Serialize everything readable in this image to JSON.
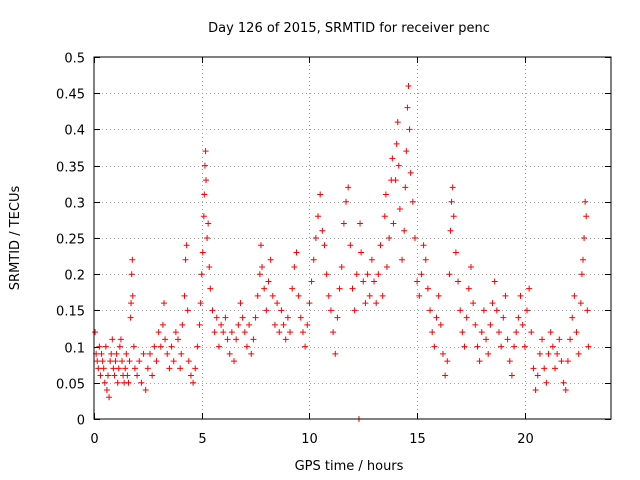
{
  "chart_data": {
    "type": "scatter",
    "title": "Day 126 of 2015, SRMTID for receiver penc",
    "xlabel": "GPS time / hours",
    "ylabel": "SRMTID / TECUs",
    "xlim": [
      0,
      24
    ],
    "ylim": [
      0,
      0.5
    ],
    "x_ticks": [
      0,
      5,
      10,
      15,
      20
    ],
    "x_tick_labels": [
      "0",
      "5",
      "10",
      "15",
      "20"
    ],
    "y_ticks": [
      0,
      0.05,
      0.1,
      0.15,
      0.2,
      0.25,
      0.3,
      0.35,
      0.4,
      0.45,
      0.5
    ],
    "y_tick_labels": [
      "0",
      "0.05",
      "0.1",
      "0.15",
      "0.2",
      "0.25",
      "0.3",
      "0.35",
      "0.4",
      "0.45",
      "0.5"
    ],
    "grid": true,
    "marker": "+",
    "marker_color": "#ff0000",
    "series": [
      {
        "name": "SRMTID",
        "points": [
          [
            0.05,
            0.12
          ],
          [
            0.1,
            0.09
          ],
          [
            0.15,
            0.08
          ],
          [
            0.2,
            0.07
          ],
          [
            0.25,
            0.1
          ],
          [
            0.3,
            0.06
          ],
          [
            0.35,
            0.09
          ],
          [
            0.4,
            0.08
          ],
          [
            0.45,
            0.07
          ],
          [
            0.5,
            0.05
          ],
          [
            0.55,
            0.1
          ],
          [
            0.6,
            0.04
          ],
          [
            0.65,
            0.06
          ],
          [
            0.7,
            0.03
          ],
          [
            0.75,
            0.08
          ],
          [
            0.8,
            0.09
          ],
          [
            0.85,
            0.11
          ],
          [
            0.9,
            0.07
          ],
          [
            0.95,
            0.06
          ],
          [
            1.0,
            0.08
          ],
          [
            1.05,
            0.09
          ],
          [
            1.1,
            0.05
          ],
          [
            1.15,
            0.07
          ],
          [
            1.2,
            0.1
          ],
          [
            1.25,
            0.11
          ],
          [
            1.3,
            0.08
          ],
          [
            1.35,
            0.06
          ],
          [
            1.4,
            0.05
          ],
          [
            1.45,
            0.07
          ],
          [
            1.5,
            0.09
          ],
          [
            1.55,
            0.06
          ],
          [
            1.6,
            0.05
          ],
          [
            1.65,
            0.08
          ],
          [
            1.7,
            0.14
          ],
          [
            1.72,
            0.16
          ],
          [
            1.75,
            0.2
          ],
          [
            1.78,
            0.22
          ],
          [
            1.8,
            0.17
          ],
          [
            1.85,
            0.1
          ],
          [
            1.9,
            0.07
          ],
          [
            2.0,
            0.06
          ],
          [
            2.1,
            0.08
          ],
          [
            2.2,
            0.05
          ],
          [
            2.3,
            0.09
          ],
          [
            2.4,
            0.04
          ],
          [
            2.5,
            0.07
          ],
          [
            2.6,
            0.09
          ],
          [
            2.7,
            0.06
          ],
          [
            2.8,
            0.1
          ],
          [
            2.9,
            0.08
          ],
          [
            3.0,
            0.12
          ],
          [
            3.1,
            0.1
          ],
          [
            3.2,
            0.13
          ],
          [
            3.25,
            0.16
          ],
          [
            3.3,
            0.11
          ],
          [
            3.4,
            0.09
          ],
          [
            3.5,
            0.07
          ],
          [
            3.6,
            0.1
          ],
          [
            3.7,
            0.08
          ],
          [
            3.8,
            0.12
          ],
          [
            3.9,
            0.11
          ],
          [
            4.0,
            0.07
          ],
          [
            4.05,
            0.09
          ],
          [
            4.1,
            0.13
          ],
          [
            4.2,
            0.17
          ],
          [
            4.25,
            0.22
          ],
          [
            4.3,
            0.24
          ],
          [
            4.35,
            0.15
          ],
          [
            4.4,
            0.08
          ],
          [
            4.5,
            0.06
          ],
          [
            4.6,
            0.05
          ],
          [
            4.7,
            0.07
          ],
          [
            4.8,
            0.1
          ],
          [
            4.9,
            0.13
          ],
          [
            4.95,
            0.16
          ],
          [
            5.0,
            0.2
          ],
          [
            5.05,
            0.23
          ],
          [
            5.1,
            0.28
          ],
          [
            5.12,
            0.31
          ],
          [
            5.15,
            0.35
          ],
          [
            5.18,
            0.37
          ],
          [
            5.2,
            0.33
          ],
          [
            5.25,
            0.25
          ],
          [
            5.3,
            0.27
          ],
          [
            5.35,
            0.21
          ],
          [
            5.4,
            0.18
          ],
          [
            5.5,
            0.15
          ],
          [
            5.6,
            0.12
          ],
          [
            5.7,
            0.14
          ],
          [
            5.8,
            0.1
          ],
          [
            5.9,
            0.13
          ],
          [
            6.0,
            0.12
          ],
          [
            6.1,
            0.14
          ],
          [
            6.2,
            0.11
          ],
          [
            6.3,
            0.09
          ],
          [
            6.4,
            0.12
          ],
          [
            6.5,
            0.08
          ],
          [
            6.6,
            0.11
          ],
          [
            6.7,
            0.13
          ],
          [
            6.8,
            0.16
          ],
          [
            6.9,
            0.14
          ],
          [
            7.0,
            0.12
          ],
          [
            7.1,
            0.1
          ],
          [
            7.2,
            0.13
          ],
          [
            7.3,
            0.09
          ],
          [
            7.4,
            0.11
          ],
          [
            7.5,
            0.14
          ],
          [
            7.6,
            0.17
          ],
          [
            7.7,
            0.2
          ],
          [
            7.75,
            0.24
          ],
          [
            7.8,
            0.21
          ],
          [
            7.9,
            0.18
          ],
          [
            8.0,
            0.15
          ],
          [
            8.1,
            0.19
          ],
          [
            8.2,
            0.22
          ],
          [
            8.3,
            0.17
          ],
          [
            8.4,
            0.13
          ],
          [
            8.5,
            0.16
          ],
          [
            8.6,
            0.12
          ],
          [
            8.7,
            0.15
          ],
          [
            8.8,
            0.13
          ],
          [
            8.9,
            0.11
          ],
          [
            9.0,
            0.14
          ],
          [
            9.1,
            0.12
          ],
          [
            9.2,
            0.18
          ],
          [
            9.3,
            0.21
          ],
          [
            9.4,
            0.23
          ],
          [
            9.5,
            0.17
          ],
          [
            9.6,
            0.14
          ],
          [
            9.7,
            0.12
          ],
          [
            9.8,
            0.1
          ],
          [
            9.9,
            0.13
          ],
          [
            10.0,
            0.16
          ],
          [
            10.1,
            0.19
          ],
          [
            10.2,
            0.22
          ],
          [
            10.3,
            0.25
          ],
          [
            10.4,
            0.28
          ],
          [
            10.5,
            0.31
          ],
          [
            10.6,
            0.26
          ],
          [
            10.7,
            0.24
          ],
          [
            10.8,
            0.2
          ],
          [
            10.9,
            0.17
          ],
          [
            11.0,
            0.15
          ],
          [
            11.1,
            0.12
          ],
          [
            11.2,
            0.09
          ],
          [
            11.3,
            0.14
          ],
          [
            11.4,
            0.18
          ],
          [
            11.5,
            0.21
          ],
          [
            11.6,
            0.27
          ],
          [
            11.7,
            0.3
          ],
          [
            11.8,
            0.32
          ],
          [
            11.9,
            0.24
          ],
          [
            12.0,
            0.18
          ],
          [
            12.1,
            0.15
          ],
          [
            12.2,
            0.2
          ],
          [
            12.3,
            0.0
          ],
          [
            12.35,
            0.27
          ],
          [
            12.4,
            0.23
          ],
          [
            12.5,
            0.19
          ],
          [
            12.6,
            0.16
          ],
          [
            12.7,
            0.2
          ],
          [
            12.8,
            0.17
          ],
          [
            12.9,
            0.22
          ],
          [
            13.0,
            0.19
          ],
          [
            13.1,
            0.16
          ],
          [
            13.2,
            0.2
          ],
          [
            13.3,
            0.24
          ],
          [
            13.4,
            0.17
          ],
          [
            13.5,
            0.28
          ],
          [
            13.55,
            0.31
          ],
          [
            13.6,
            0.21
          ],
          [
            13.7,
            0.25
          ],
          [
            13.8,
            0.33
          ],
          [
            13.85,
            0.36
          ],
          [
            13.9,
            0.27
          ],
          [
            14.0,
            0.33
          ],
          [
            14.05,
            0.38
          ],
          [
            14.1,
            0.41
          ],
          [
            14.15,
            0.35
          ],
          [
            14.2,
            0.29
          ],
          [
            14.3,
            0.22
          ],
          [
            14.4,
            0.26
          ],
          [
            14.45,
            0.32
          ],
          [
            14.5,
            0.37
          ],
          [
            14.55,
            0.43
          ],
          [
            14.6,
            0.46
          ],
          [
            14.65,
            0.4
          ],
          [
            14.7,
            0.34
          ],
          [
            14.8,
            0.3
          ],
          [
            14.9,
            0.25
          ],
          [
            15.0,
            0.19
          ],
          [
            15.1,
            0.17
          ],
          [
            15.2,
            0.2
          ],
          [
            15.3,
            0.24
          ],
          [
            15.4,
            0.22
          ],
          [
            15.5,
            0.18
          ],
          [
            15.6,
            0.15
          ],
          [
            15.7,
            0.12
          ],
          [
            15.8,
            0.1
          ],
          [
            15.9,
            0.14
          ],
          [
            16.0,
            0.17
          ],
          [
            16.1,
            0.13
          ],
          [
            16.2,
            0.09
          ],
          [
            16.3,
            0.06
          ],
          [
            16.4,
            0.08
          ],
          [
            16.5,
            0.2
          ],
          [
            16.55,
            0.26
          ],
          [
            16.6,
            0.3
          ],
          [
            16.65,
            0.32
          ],
          [
            16.7,
            0.28
          ],
          [
            16.8,
            0.23
          ],
          [
            16.9,
            0.19
          ],
          [
            17.0,
            0.15
          ],
          [
            17.1,
            0.12
          ],
          [
            17.2,
            0.1
          ],
          [
            17.3,
            0.14
          ],
          [
            17.4,
            0.18
          ],
          [
            17.5,
            0.21
          ],
          [
            17.6,
            0.16
          ],
          [
            17.7,
            0.13
          ],
          [
            17.8,
            0.1
          ],
          [
            17.9,
            0.08
          ],
          [
            18.0,
            0.12
          ],
          [
            18.1,
            0.15
          ],
          [
            18.2,
            0.11
          ],
          [
            18.3,
            0.09
          ],
          [
            18.4,
            0.13
          ],
          [
            18.5,
            0.16
          ],
          [
            18.6,
            0.19
          ],
          [
            18.7,
            0.15
          ],
          [
            18.8,
            0.12
          ],
          [
            18.9,
            0.1
          ],
          [
            19.0,
            0.14
          ],
          [
            19.1,
            0.17
          ],
          [
            19.2,
            0.11
          ],
          [
            19.3,
            0.08
          ],
          [
            19.4,
            0.06
          ],
          [
            19.5,
            0.1
          ],
          [
            19.6,
            0.12
          ],
          [
            19.7,
            0.14
          ],
          [
            19.8,
            0.17
          ],
          [
            19.9,
            0.13
          ],
          [
            20.0,
            0.1
          ],
          [
            20.1,
            0.15
          ],
          [
            20.2,
            0.18
          ],
          [
            20.3,
            0.12
          ],
          [
            20.4,
            0.07
          ],
          [
            20.5,
            0.04
          ],
          [
            20.6,
            0.06
          ],
          [
            20.7,
            0.09
          ],
          [
            20.8,
            0.11
          ],
          [
            20.9,
            0.07
          ],
          [
            21.0,
            0.05
          ],
          [
            21.1,
            0.09
          ],
          [
            21.2,
            0.12
          ],
          [
            21.3,
            0.1
          ],
          [
            21.4,
            0.07
          ],
          [
            21.5,
            0.09
          ],
          [
            21.6,
            0.11
          ],
          [
            21.7,
            0.08
          ],
          [
            21.8,
            0.05
          ],
          [
            21.9,
            0.04
          ],
          [
            22.0,
            0.08
          ],
          [
            22.1,
            0.11
          ],
          [
            22.2,
            0.14
          ],
          [
            22.3,
            0.17
          ],
          [
            22.4,
            0.12
          ],
          [
            22.5,
            0.09
          ],
          [
            22.6,
            0.16
          ],
          [
            22.65,
            0.2
          ],
          [
            22.7,
            0.22
          ],
          [
            22.75,
            0.25
          ],
          [
            22.8,
            0.3
          ],
          [
            22.85,
            0.28
          ],
          [
            22.9,
            0.15
          ],
          [
            22.95,
            0.1
          ]
        ]
      }
    ]
  }
}
